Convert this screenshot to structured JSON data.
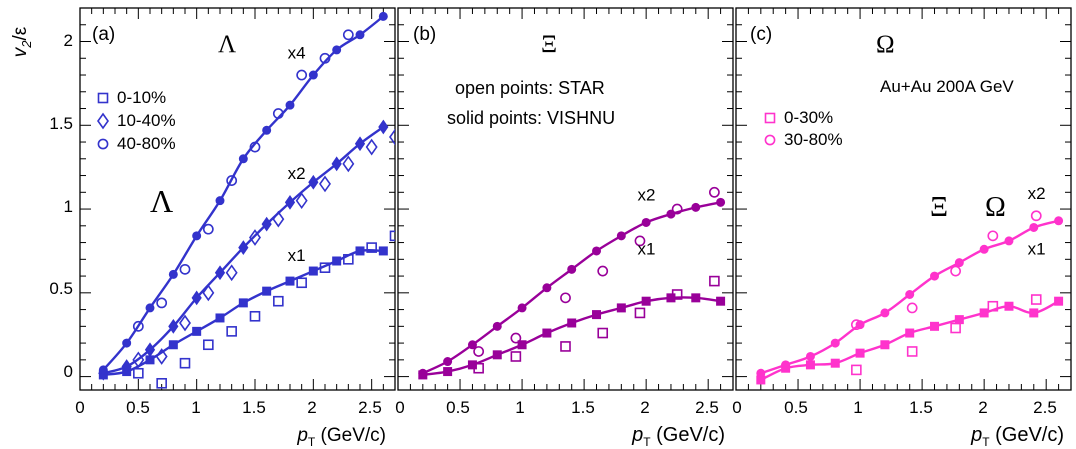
{
  "figure": {
    "ylabel_main": "v",
    "ylabel_sub": "2",
    "ylabel_tail": "/ε",
    "xlabel_main": "p",
    "xlabel_sub": "T",
    "xlabel_tail": " (GeV/c)"
  },
  "chart_data": [
    {
      "type": "scatter",
      "panel_label": "(a)",
      "particle_label": "Λ",
      "inset_particle_label": "Λ",
      "xlabel": "pT (GeV/c)",
      "ylabel": "v2/ε",
      "xlim": [
        0,
        2.7
      ],
      "ylim": [
        -0.08,
        2.2
      ],
      "x_ticks": [
        "0",
        "0.5",
        "1",
        "1.5",
        "2",
        "2.5"
      ],
      "y_ticks": [
        "0",
        "0.5",
        "1",
        "1.5",
        "2"
      ],
      "color": "#3333cc",
      "scale_labels": [
        {
          "text": "x4",
          "x": 1.78,
          "y": 1.9
        },
        {
          "text": "x2",
          "x": 1.78,
          "y": 1.18
        },
        {
          "text": "x1",
          "x": 1.78,
          "y": 0.69
        }
      ],
      "legend": [
        {
          "label": "0-10%",
          "marker": "open-square"
        },
        {
          "label": "10-40%",
          "marker": "open-diamond"
        },
        {
          "label": "40-80%",
          "marker": "open-circle"
        }
      ],
      "series": [
        {
          "name": "VISHNU",
          "style": "line-marker",
          "marker": "solid-square",
          "x": [
            0.2,
            0.4,
            0.6,
            0.8,
            1.0,
            1.2,
            1.4,
            1.6,
            1.8,
            2.0,
            2.2,
            2.4,
            2.6
          ],
          "y": [
            0.01,
            0.03,
            0.1,
            0.19,
            0.27,
            0.35,
            0.44,
            0.51,
            0.57,
            0.63,
            0.69,
            0.75,
            0.75
          ]
        },
        {
          "name": "STAR",
          "style": "marker",
          "marker": "open-square",
          "x": [
            0.5,
            0.7,
            0.9,
            1.1,
            1.3,
            1.5,
            1.7,
            1.9,
            2.1,
            2.3,
            2.5,
            2.7
          ],
          "y": [
            0.02,
            -0.04,
            0.08,
            0.19,
            0.27,
            0.36,
            0.45,
            0.56,
            0.65,
            0.7,
            0.77,
            0.84
          ]
        },
        {
          "name": "VISHNU",
          "style": "line-marker",
          "marker": "solid-diamond",
          "x": [
            0.2,
            0.4,
            0.6,
            0.8,
            1.0,
            1.2,
            1.4,
            1.6,
            1.8,
            2.0,
            2.2,
            2.4,
            2.6
          ],
          "y": [
            0.02,
            0.06,
            0.16,
            0.3,
            0.47,
            0.62,
            0.77,
            0.91,
            1.04,
            1.16,
            1.27,
            1.39,
            1.49
          ]
        },
        {
          "name": "STAR",
          "style": "marker",
          "marker": "open-diamond",
          "x": [
            0.5,
            0.7,
            0.9,
            1.1,
            1.3,
            1.5,
            1.7,
            1.9,
            2.1,
            2.3,
            2.5,
            2.7
          ],
          "y": [
            0.1,
            0.12,
            0.32,
            0.5,
            0.62,
            0.83,
            0.94,
            1.05,
            1.15,
            1.27,
            1.37,
            1.43
          ]
        },
        {
          "name": "VISHNU",
          "style": "line-marker",
          "marker": "solid-circle",
          "x": [
            0.2,
            0.4,
            0.6,
            0.8,
            1.0,
            1.2,
            1.4,
            1.6,
            1.8,
            2.0,
            2.2,
            2.4,
            2.6
          ],
          "y": [
            0.04,
            0.2,
            0.41,
            0.61,
            0.84,
            1.05,
            1.3,
            1.47,
            1.62,
            1.8,
            1.95,
            2.04,
            2.15
          ]
        },
        {
          "name": "STAR",
          "style": "marker",
          "marker": "open-circle",
          "x": [
            0.5,
            0.7,
            0.9,
            1.1,
            1.3,
            1.5,
            1.7,
            1.9,
            2.1,
            2.3
          ],
          "y": [
            0.3,
            0.44,
            0.64,
            0.88,
            1.17,
            1.37,
            1.57,
            1.8,
            1.9,
            2.04
          ]
        }
      ]
    },
    {
      "type": "scatter",
      "panel_label": "(b)",
      "particle_label": "Ξ",
      "xlabel": "pT (GeV/c)",
      "xlim": [
        0,
        2.7
      ],
      "ylim": [
        -0.08,
        2.2
      ],
      "x_ticks": [
        "0.5",
        "1",
        "1.5",
        "2",
        "2.5"
      ],
      "color": "#990099",
      "notes": [
        "open points: STAR",
        "solid points: VISHNU"
      ],
      "scale_labels": [
        {
          "text": "x2",
          "x": 1.93,
          "y": 1.05
        },
        {
          "text": "x1",
          "x": 1.93,
          "y": 0.73
        }
      ],
      "series": [
        {
          "name": "VISHNU",
          "style": "line-marker",
          "marker": "solid-square",
          "x": [
            0.2,
            0.4,
            0.6,
            0.8,
            1.0,
            1.2,
            1.4,
            1.6,
            1.8,
            2.0,
            2.2,
            2.4,
            2.6
          ],
          "y": [
            0.01,
            0.03,
            0.07,
            0.13,
            0.19,
            0.26,
            0.32,
            0.37,
            0.41,
            0.45,
            0.47,
            0.47,
            0.45
          ]
        },
        {
          "name": "STAR",
          "style": "marker",
          "marker": "open-square",
          "x": [
            0.65,
            0.95,
            1.35,
            1.65,
            1.95,
            2.25,
            2.55
          ],
          "y": [
            0.05,
            0.12,
            0.18,
            0.26,
            0.38,
            0.49,
            0.57
          ]
        },
        {
          "name": "VISHNU",
          "style": "line-marker",
          "marker": "solid-circle",
          "x": [
            0.2,
            0.4,
            0.6,
            0.8,
            1.0,
            1.2,
            1.4,
            1.6,
            1.8,
            2.0,
            2.2,
            2.4,
            2.6
          ],
          "y": [
            0.02,
            0.09,
            0.19,
            0.3,
            0.41,
            0.53,
            0.64,
            0.75,
            0.84,
            0.92,
            0.97,
            1.01,
            1.04
          ]
        },
        {
          "name": "STAR",
          "style": "marker",
          "marker": "open-circle",
          "x": [
            0.65,
            0.95,
            1.35,
            1.65,
            1.95,
            2.25,
            2.55
          ],
          "y": [
            0.15,
            0.23,
            0.47,
            0.63,
            0.81,
            1.0,
            1.1
          ]
        }
      ]
    },
    {
      "type": "scatter",
      "panel_label": "(c)",
      "particle_label": "Ω",
      "inset_particle_labels": [
        "Ξ",
        "Ω"
      ],
      "xlabel": "pT (GeV/c)",
      "xlim": [
        0,
        2.7
      ],
      "ylim": [
        -0.08,
        2.2
      ],
      "x_ticks": [
        "0.5",
        "1",
        "1.5",
        "2",
        "2.5"
      ],
      "color": "#ff33cc",
      "notes": [
        "Au+Au 200A GeV"
      ],
      "scale_labels": [
        {
          "text": "x2",
          "x": 2.35,
          "y": 1.06
        },
        {
          "text": "x1",
          "x": 2.35,
          "y": 0.73
        }
      ],
      "legend": [
        {
          "label": "0-30%",
          "marker": "open-square"
        },
        {
          "label": "30-80%",
          "marker": "open-circle"
        }
      ],
      "series": [
        {
          "name": "VISHNU",
          "style": "line-marker",
          "marker": "solid-square",
          "x": [
            0.2,
            0.4,
            0.6,
            0.8,
            1.0,
            1.2,
            1.4,
            1.6,
            1.8,
            2.0,
            2.2,
            2.4,
            2.6
          ],
          "y": [
            -0.02,
            0.05,
            0.07,
            0.08,
            0.14,
            0.19,
            0.26,
            0.3,
            0.34,
            0.38,
            0.42,
            0.38,
            0.45
          ]
        },
        {
          "name": "STAR",
          "style": "marker",
          "marker": "open-square",
          "x": [
            0.97,
            1.42,
            1.77,
            2.07,
            2.42
          ],
          "y": [
            0.04,
            0.15,
            0.29,
            0.42,
            0.46
          ]
        },
        {
          "name": "VISHNU",
          "style": "line-marker",
          "marker": "solid-circle",
          "x": [
            0.2,
            0.4,
            0.6,
            0.8,
            1.0,
            1.2,
            1.4,
            1.6,
            1.8,
            2.0,
            2.2,
            2.4,
            2.6
          ],
          "y": [
            0.02,
            0.07,
            0.12,
            0.2,
            0.31,
            0.38,
            0.49,
            0.6,
            0.68,
            0.76,
            0.81,
            0.89,
            0.93
          ]
        },
        {
          "name": "STAR",
          "style": "marker",
          "marker": "open-circle",
          "x": [
            0.97,
            1.42,
            1.77,
            2.07,
            2.42
          ],
          "y": [
            0.31,
            0.41,
            0.63,
            0.84,
            0.96
          ]
        }
      ]
    }
  ]
}
